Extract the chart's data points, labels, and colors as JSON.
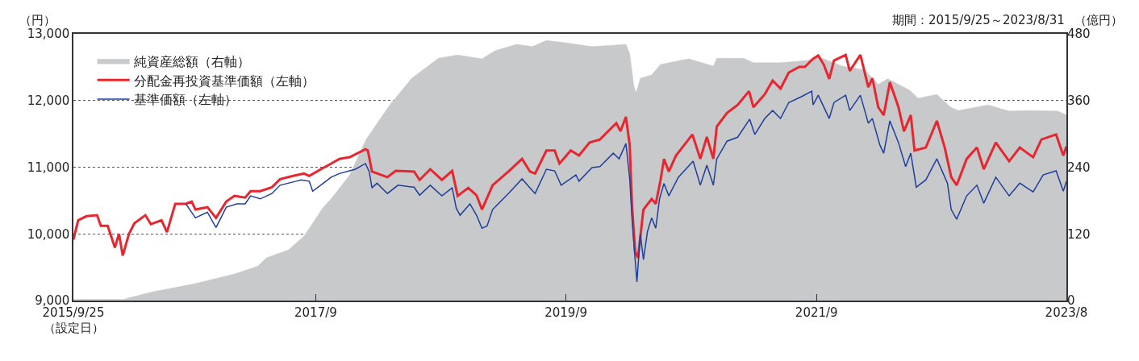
{
  "chart_data": {
    "type": "line",
    "ylabel": "（円）",
    "y2label": "（億円）",
    "annotations": [
      "期間：2015/9/25～2023/8/31"
    ],
    "xlim": [
      "2015-09-25",
      "2023-08-31"
    ],
    "xticks": [
      {
        "value": "2015-09-25",
        "label": "2015/9/25\n（設定日）"
      },
      {
        "value": "2017-09-01",
        "label": "2017/9"
      },
      {
        "value": "2019-09-01",
        "label": "2019/9"
      },
      {
        "value": "2021-09-01",
        "label": "2021/9"
      },
      {
        "value": "2023-08-31",
        "label": "2023/8"
      }
    ],
    "ylim": [
      9000,
      13000
    ],
    "yticks": [
      {
        "value": 9000,
        "label": "9,000"
      },
      {
        "value": 10000,
        "label": "10,000"
      },
      {
        "value": 11000,
        "label": "11,000"
      },
      {
        "value": 12000,
        "label": "12,000"
      },
      {
        "value": 13000,
        "label": "13,000"
      }
    ],
    "y2lim": [
      0,
      480
    ],
    "y2ticks": [
      0,
      120,
      240,
      360,
      480
    ],
    "grid": "y",
    "legend": "top left",
    "series": [
      {
        "name": "純資産総額（右軸）",
        "type": "area",
        "axis": "y2",
        "color": "#c8c9cb",
        "x": [
          "2015-09-25",
          "2016-02-19",
          "2016-02-28",
          "2016-05-15",
          "2016-09-11",
          "2017-01-07",
          "2017-03-16",
          "2017-04-10",
          "2017-06-13",
          "2017-07-29",
          "2017-09-23",
          "2017-10-16",
          "2017-12-09",
          "2018-01-26",
          "2018-04-05",
          "2018-06-08",
          "2018-08-25",
          "2018-10-20",
          "2018-12-30",
          "2019-02-07",
          "2019-04-10",
          "2019-05-26",
          "2019-07-06",
          "2019-08-30",
          "2019-11-16",
          "2020-02-23",
          "2020-03-05",
          "2020-03-17",
          "2020-03-24",
          "2020-04-05",
          "2020-05-08",
          "2020-06-03",
          "2020-08-24",
          "2020-11-04",
          "2020-11-14",
          "2021-01-30",
          "2021-03-01",
          "2021-05-19",
          "2021-08-06",
          "2021-09-06",
          "2021-11-15",
          "2022-01-19",
          "2022-02-28",
          "2022-03-28",
          "2022-06-01",
          "2022-06-24",
          "2022-08-18",
          "2022-09-27",
          "2022-10-20",
          "2023-01-14",
          "2023-03-17",
          "2023-05-19",
          "2023-08-05",
          "2023-08-31"
        ],
        "values": [
          2,
          2,
          4,
          16,
          30,
          48,
          62,
          77,
          91,
          116,
          168,
          183,
          226,
          290,
          352,
          400,
          436,
          442,
          435,
          450,
          461,
          457,
          468,
          464,
          457,
          461,
          444,
          386,
          374,
          400,
          406,
          425,
          435,
          422,
          436,
          436,
          428,
          428,
          432,
          439,
          422,
          415,
          389,
          399,
          378,
          364,
          371,
          348,
          342,
          352,
          341,
          342,
          341,
          334
        ]
      },
      {
        "name": "分配金再投資基準価額（左軸）",
        "color": "#e8262f",
        "x": [
          "2015-09-25",
          "2015-10-09",
          "2015-11-02",
          "2015-12-03",
          "2015-12-14",
          "2016-01-03",
          "2016-01-24",
          "2016-02-05",
          "2016-02-16",
          "2016-03-05",
          "2016-03-21",
          "2016-04-22",
          "2016-05-08",
          "2016-06-08",
          "2016-06-24",
          "2016-07-18",
          "2016-08-18",
          "2016-09-04",
          "2016-09-15",
          "2016-10-20",
          "2016-11-14",
          "2016-12-14",
          "2017-01-07",
          "2017-02-07",
          "2017-02-23",
          "2017-03-23",
          "2017-04-26",
          "2017-05-20",
          "2017-06-27",
          "2017-07-29",
          "2017-08-13",
          "2017-09-16",
          "2017-10-16",
          "2017-11-09",
          "2017-12-09",
          "2018-01-24",
          "2018-01-31",
          "2018-02-12",
          "2018-03-29",
          "2018-04-22",
          "2018-06-15",
          "2018-07-01",
          "2018-08-01",
          "2018-09-04",
          "2018-10-04",
          "2018-10-20",
          "2018-11-20",
          "2018-12-14",
          "2018-12-30",
          "2019-01-30",
          "2019-03-17",
          "2019-04-26",
          "2019-05-19",
          "2019-06-03",
          "2019-07-06",
          "2019-07-30",
          "2019-08-13",
          "2019-09-15",
          "2019-10-09",
          "2019-11-09",
          "2019-12-09",
          "2020-01-26",
          "2020-02-07",
          "2020-02-23",
          "2020-03-05",
          "2020-03-12",
          "2020-03-21",
          "2020-03-29",
          "2020-04-14",
          "2020-05-08",
          "2020-05-20",
          "2020-06-03",
          "2020-06-13",
          "2020-06-27",
          "2020-07-18",
          "2020-09-04",
          "2020-09-27",
          "2020-10-16",
          "2020-11-04",
          "2020-11-14",
          "2020-12-14",
          "2021-01-14",
          "2021-02-16",
          "2021-03-01",
          "2021-04-03",
          "2021-04-26",
          "2021-05-19",
          "2021-06-12",
          "2021-07-13",
          "2021-07-29",
          "2021-08-22",
          "2021-09-06",
          "2021-09-22",
          "2021-10-08",
          "2021-10-22",
          "2021-11-25",
          "2021-12-07",
          "2022-01-07",
          "2022-01-30",
          "2022-02-11",
          "2022-02-28",
          "2022-03-16",
          "2022-04-03",
          "2022-04-28",
          "2022-05-14",
          "2022-06-03",
          "2022-06-14",
          "2022-07-17",
          "2022-08-18",
          "2022-09-10",
          "2022-09-29",
          "2022-10-15",
          "2022-11-13",
          "2022-12-13",
          "2023-01-02",
          "2023-02-06",
          "2023-03-17",
          "2023-04-17",
          "2023-05-26",
          "2023-06-19",
          "2023-08-01",
          "2023-08-22",
          "2023-08-31"
        ],
        "values": [
          9915,
          10205,
          10265,
          10280,
          10120,
          10120,
          9795,
          10000,
          9675,
          10000,
          10160,
          10280,
          10145,
          10205,
          10025,
          10450,
          10450,
          10485,
          10365,
          10400,
          10240,
          10485,
          10570,
          10545,
          10640,
          10640,
          10700,
          10820,
          10870,
          10905,
          10870,
          10970,
          11055,
          11125,
          11150,
          11270,
          11250,
          10935,
          10850,
          10945,
          10935,
          10810,
          10970,
          10810,
          10945,
          10570,
          10690,
          10580,
          10365,
          10730,
          10935,
          11125,
          10935,
          10905,
          11250,
          11250,
          11055,
          11250,
          11175,
          11370,
          11415,
          11660,
          11540,
          11755,
          11330,
          10400,
          9725,
          9640,
          10365,
          10525,
          10450,
          10810,
          11125,
          10935,
          11175,
          11490,
          11125,
          11455,
          11125,
          11610,
          11815,
          11935,
          12140,
          11900,
          12095,
          12300,
          12180,
          12420,
          12505,
          12505,
          12625,
          12675,
          12540,
          12325,
          12600,
          12685,
          12445,
          12685,
          12200,
          12335,
          11900,
          11780,
          12275,
          11900,
          11540,
          11780,
          11250,
          11295,
          11695,
          11295,
          10850,
          10730,
          11125,
          11295,
          10970,
          11370,
          11090,
          11295,
          11150,
          11415,
          11490,
          11175,
          11310
        ]
      },
      {
        "name": "基準価額（左軸）",
        "color": "#1f3f9b",
        "x": [
          "2016-08-18",
          "2016-09-15",
          "2016-10-20",
          "2016-11-14",
          "2016-12-14",
          "2017-01-14",
          "2017-02-07",
          "2017-02-23",
          "2017-03-23",
          "2017-04-26",
          "2017-05-20",
          "2017-07-06",
          "2017-07-20",
          "2017-08-13",
          "2017-08-23",
          "2017-09-23",
          "2017-10-16",
          "2017-11-09",
          "2017-12-26",
          "2018-01-24",
          "2018-02-04",
          "2018-02-12",
          "2018-02-27",
          "2018-03-29",
          "2018-04-29",
          "2018-06-15",
          "2018-07-01",
          "2018-08-01",
          "2018-09-04",
          "2018-10-04",
          "2018-10-16",
          "2018-10-27",
          "2018-11-25",
          "2018-12-14",
          "2018-12-30",
          "2019-01-14",
          "2019-01-30",
          "2019-03-17",
          "2019-04-26",
          "2019-05-19",
          "2019-06-03",
          "2019-07-06",
          "2019-07-30",
          "2019-08-18",
          "2019-09-30",
          "2019-10-09",
          "2019-11-16",
          "2019-12-09",
          "2020-01-17",
          "2020-02-03",
          "2020-02-23",
          "2020-03-05",
          "2020-03-12",
          "2020-03-19",
          "2020-03-26",
          "2020-04-05",
          "2020-04-14",
          "2020-04-26",
          "2020-05-08",
          "2020-05-20",
          "2020-05-31",
          "2020-06-13",
          "2020-06-27",
          "2020-07-25",
          "2020-09-06",
          "2020-09-27",
          "2020-10-16",
          "2020-11-04",
          "2020-11-14",
          "2020-12-14",
          "2021-01-14",
          "2021-02-18",
          "2021-03-05",
          "2021-04-03",
          "2021-04-26",
          "2021-05-19",
          "2021-06-12",
          "2021-07-20",
          "2021-08-18",
          "2021-08-22",
          "2021-09-06",
          "2021-09-27",
          "2021-10-08",
          "2021-10-22",
          "2021-11-25",
          "2021-12-07",
          "2022-01-07",
          "2022-01-30",
          "2022-02-11",
          "2022-03-05",
          "2022-03-16",
          "2022-04-03",
          "2022-04-28",
          "2022-05-19",
          "2022-06-03",
          "2022-06-19",
          "2022-07-17",
          "2022-08-18",
          "2022-09-18",
          "2022-09-29",
          "2022-10-15",
          "2022-11-13",
          "2022-12-13",
          "2023-01-02",
          "2023-02-06",
          "2023-03-17",
          "2023-04-17",
          "2023-05-26",
          "2023-06-24",
          "2023-08-01",
          "2023-08-22",
          "2023-08-31"
        ],
        "values": [
          10450,
          10240,
          10325,
          10095,
          10400,
          10450,
          10450,
          10570,
          10525,
          10605,
          10730,
          10790,
          10810,
          10790,
          10640,
          10760,
          10850,
          10905,
          10970,
          11055,
          10935,
          10690,
          10760,
          10605,
          10730,
          10700,
          10580,
          10730,
          10570,
          10690,
          10385,
          10280,
          10450,
          10280,
          10085,
          10120,
          10365,
          10605,
          10825,
          10690,
          10605,
          10970,
          10945,
          10730,
          10885,
          10790,
          10995,
          11010,
          11210,
          11125,
          11355,
          10825,
          10205,
          9725,
          9280,
          10000,
          9615,
          10040,
          10240,
          10085,
          10525,
          10755,
          10570,
          10850,
          11090,
          10730,
          11030,
          10730,
          11125,
          11390,
          11450,
          11720,
          11490,
          11730,
          11850,
          11730,
          11970,
          12060,
          12140,
          11935,
          12080,
          11850,
          11730,
          11970,
          12080,
          11850,
          12080,
          11660,
          11730,
          11330,
          11210,
          11695,
          11370,
          11010,
          11210,
          10700,
          10810,
          11125,
          10760,
          10365,
          10220,
          10570,
          10730,
          10460,
          10850,
          10570,
          10760,
          10630,
          10885,
          10945,
          10640,
          10790
        ]
      }
    ]
  }
}
